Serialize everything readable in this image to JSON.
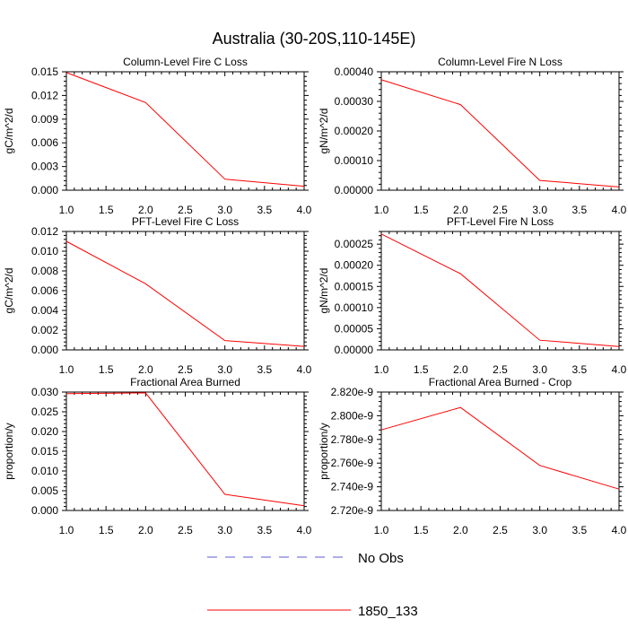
{
  "figure": {
    "title": "Australia (30-20S,110-145E)"
  },
  "legend": {
    "placement": "bottom-center",
    "entries": [
      {
        "label": "No Obs",
        "color": "#5b5bd6",
        "style": "dashed"
      },
      {
        "label": "1850_133",
        "color": "#ff0000",
        "style": "solid"
      }
    ]
  },
  "chart_data": [
    {
      "type": "line",
      "title": "Column-Level Fire C Loss",
      "ylabel": "gC/m^2/d",
      "xlim": [
        1.0,
        4.0
      ],
      "ylim": [
        0,
        0.015
      ],
      "xticks": [
        "1.0",
        "1.5",
        "2.0",
        "2.5",
        "3.0",
        "3.5",
        "4.0"
      ],
      "yticks": [
        "0.000",
        "0.003",
        "0.006",
        "0.009",
        "0.012",
        "0.015"
      ],
      "series": [
        {
          "name": "1850_133",
          "color": "#ff0000",
          "x": [
            1,
            2,
            3,
            4
          ],
          "y": [
            0.0149,
            0.0111,
            0.0014,
            0.0005
          ]
        }
      ]
    },
    {
      "type": "line",
      "title": "Column-Level Fire N Loss",
      "ylabel": "gN/m^2/d",
      "xlim": [
        1.0,
        4.0
      ],
      "ylim": [
        0,
        0.0004
      ],
      "xticks": [
        "1.0",
        "1.5",
        "2.0",
        "2.5",
        "3.0",
        "3.5",
        "4.0"
      ],
      "yticks": [
        "0.00000",
        "0.00010",
        "0.00020",
        "0.00030",
        "0.00040"
      ],
      "series": [
        {
          "name": "1850_133",
          "color": "#ff0000",
          "x": [
            1,
            2,
            3,
            4
          ],
          "y": [
            0.000373,
            0.000289,
            3.3e-05,
            1.1e-05
          ]
        }
      ]
    },
    {
      "type": "line",
      "title": "PFT-Level Fire C Loss",
      "ylabel": "gC/m^2/d",
      "xlim": [
        1.0,
        4.0
      ],
      "ylim": [
        0,
        0.012
      ],
      "xticks": [
        "1.0",
        "1.5",
        "2.0",
        "2.5",
        "3.0",
        "3.5",
        "4.0"
      ],
      "yticks": [
        "0.000",
        "0.002",
        "0.004",
        "0.006",
        "0.008",
        "0.010",
        "0.012"
      ],
      "series": [
        {
          "name": "1850_133",
          "color": "#ff0000",
          "x": [
            1,
            2,
            3,
            4
          ],
          "y": [
            0.011,
            0.0067,
            0.00095,
            0.00035
          ]
        }
      ]
    },
    {
      "type": "line",
      "title": "PFT-Level Fire N Loss",
      "ylabel": "gN/m^2/d",
      "xlim": [
        1.0,
        4.0
      ],
      "ylim": [
        0,
        0.00028
      ],
      "xticks": [
        "1.0",
        "1.5",
        "2.0",
        "2.5",
        "3.0",
        "3.5",
        "4.0"
      ],
      "yticks": [
        "0.00000",
        "0.00005",
        "0.00010",
        "0.00015",
        "0.00020",
        "0.00025"
      ],
      "series": [
        {
          "name": "1850_133",
          "color": "#ff0000",
          "x": [
            1,
            2,
            3,
            4
          ],
          "y": [
            0.000274,
            0.00018,
            2.3e-05,
            8e-06
          ]
        }
      ]
    },
    {
      "type": "line",
      "title": "Fractional Area Burned",
      "ylabel": "proportion/y",
      "xlim": [
        1.0,
        4.0
      ],
      "ylim": [
        0,
        0.03
      ],
      "xticks": [
        "1.0",
        "1.5",
        "2.0",
        "2.5",
        "3.0",
        "3.5",
        "4.0"
      ],
      "yticks": [
        "0.000",
        "0.005",
        "0.010",
        "0.015",
        "0.020",
        "0.025",
        "0.030"
      ],
      "series": [
        {
          "name": "1850_133",
          "color": "#ff0000",
          "x": [
            1,
            2,
            3,
            4
          ],
          "y": [
            0.0296,
            0.0298,
            0.0041,
            0.0012
          ]
        }
      ]
    },
    {
      "type": "line",
      "title": "Fractional Area Burned - Crop",
      "ylabel": "proportion/y",
      "xlim": [
        1.0,
        4.0
      ],
      "ylim": [
        2.72e-09,
        2.82e-09
      ],
      "xticks": [
        "1.0",
        "1.5",
        "2.0",
        "2.5",
        "3.0",
        "3.5",
        "4.0"
      ],
      "yticks": [
        "2.720e-9",
        "2.740e-9",
        "2.760e-9",
        "2.780e-9",
        "2.800e-9",
        "2.820e-9"
      ],
      "series": [
        {
          "name": "1850_133",
          "color": "#ff0000",
          "x": [
            1,
            2,
            3,
            4
          ],
          "y": [
            2.788e-09,
            2.807e-09,
            2.758e-09,
            2.738e-09
          ]
        }
      ]
    }
  ]
}
